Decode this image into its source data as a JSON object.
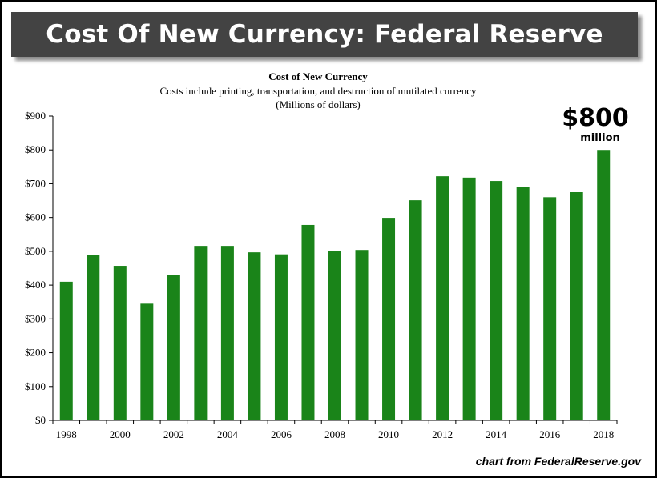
{
  "banner": {
    "title": "Cost Of New Currency: Federal Reserve"
  },
  "callout": {
    "amount": "$800",
    "unit": "million"
  },
  "source_note": "chart from FederalReserve.gov",
  "colors": {
    "bar": "#1a8419",
    "banner_bg": "#434343",
    "banner_text": "#ffffff"
  },
  "chart_data": {
    "type": "bar",
    "title": "Cost of New Currency",
    "subtitle": "Costs include printing, transportation, and destruction of mutilated currency",
    "ylabel": "(Millions of dollars)",
    "xlabel": "",
    "ylim": [
      0,
      900
    ],
    "yticks": [
      0,
      100,
      200,
      300,
      400,
      500,
      600,
      700,
      800,
      900
    ],
    "ytick_labels": [
      "$0",
      "$100",
      "$200",
      "$300",
      "$400",
      "$500",
      "$600",
      "$700",
      "$800",
      "$900"
    ],
    "categories": [
      "1998",
      "1999",
      "2000",
      "2001",
      "2002",
      "2003",
      "2004",
      "2005",
      "2006",
      "2007",
      "2008",
      "2009",
      "2010",
      "2011",
      "2012",
      "2013",
      "2014",
      "2015",
      "2016",
      "2017",
      "2018"
    ],
    "xtick_labels": [
      "1998",
      "2000",
      "2002",
      "2004",
      "2006",
      "2008",
      "2010",
      "2012",
      "2014",
      "2016",
      "2018"
    ],
    "values": [
      410,
      488,
      457,
      345,
      431,
      516,
      516,
      497,
      491,
      578,
      502,
      504,
      599,
      651,
      722,
      718,
      708,
      690,
      660,
      675,
      800
    ],
    "grid": false,
    "legend": "none"
  }
}
